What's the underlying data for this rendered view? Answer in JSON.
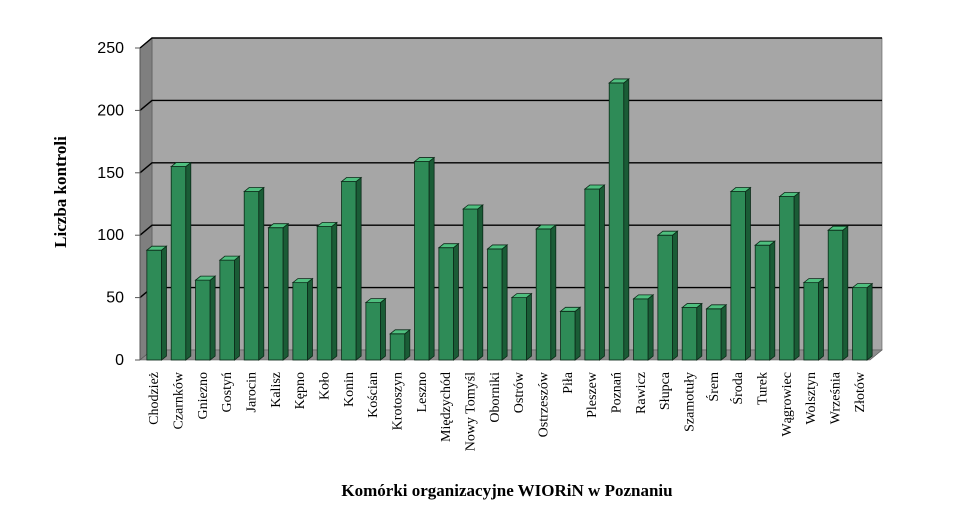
{
  "chart_data": {
    "type": "bar",
    "xlabel": "Komórki organizacyjne WIORiN w Poznaniu",
    "ylabel": "Liczba kontroli",
    "ylim": [
      0,
      250
    ],
    "yticks": [
      0,
      50,
      100,
      150,
      200,
      250
    ],
    "grid": true,
    "categories": [
      "Chodzież",
      "Czarnków",
      "Gniezno",
      "Gostyń",
      "Jarocin",
      "Kalisz",
      "Kępno",
      "Koło",
      "Konin",
      "Kościan",
      "Krotoszyn",
      "Leszno",
      "Międzychód",
      "Nowy Tomyśl",
      "Oborniki",
      "Ostrów",
      "Ostrzeszów",
      "Piła",
      "Pleszew",
      "Poznań",
      "Rawicz",
      "Słupca",
      "Szamotuły",
      "Śrem",
      "Środa",
      "Turek",
      "Wągrowiec",
      "Wolsztyn",
      "Września",
      "Złotów"
    ],
    "values": [
      88,
      155,
      64,
      80,
      135,
      106,
      62,
      107,
      143,
      46,
      21,
      159,
      90,
      121,
      89,
      50,
      105,
      39,
      137,
      222,
      49,
      100,
      42,
      41,
      135,
      92,
      131,
      62,
      104,
      58
    ],
    "colors": {
      "bar_front": "#2e8b57",
      "bar_side": "#1a5c36",
      "bar_top": "#4fbf7f",
      "wall": "#a6a6a6",
      "floor": "#8c8c8c",
      "side_wall": "#7f7f7f",
      "gridline": "#000000"
    }
  }
}
